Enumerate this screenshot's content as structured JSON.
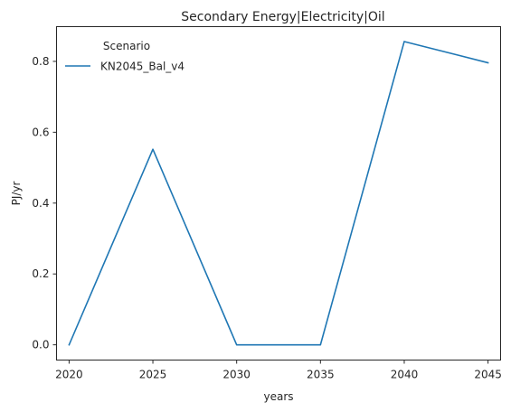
{
  "chart_data": {
    "type": "line",
    "title": "Secondary Energy|Electricity|Oil",
    "xlabel": "years",
    "ylabel": "PJ/yr",
    "x": [
      2020,
      2025,
      2030,
      2035,
      2040,
      2045
    ],
    "xticks": [
      "2020",
      "2025",
      "2030",
      "2035",
      "2040",
      "2045"
    ],
    "yticks": [
      "0.0",
      "0.2",
      "0.4",
      "0.6",
      "0.8"
    ],
    "xlim": [
      2019.25,
      2045.75
    ],
    "ylim": [
      -0.043,
      0.898
    ],
    "grid": false,
    "legend": {
      "title": "Scenario",
      "placement": "top-left"
    },
    "series": [
      {
        "name": "KN2045_Bal_v4",
        "color": "#1f77b4",
        "values": [
          0.0,
          0.552,
          0.0,
          0.0,
          0.856,
          0.796
        ]
      }
    ]
  }
}
